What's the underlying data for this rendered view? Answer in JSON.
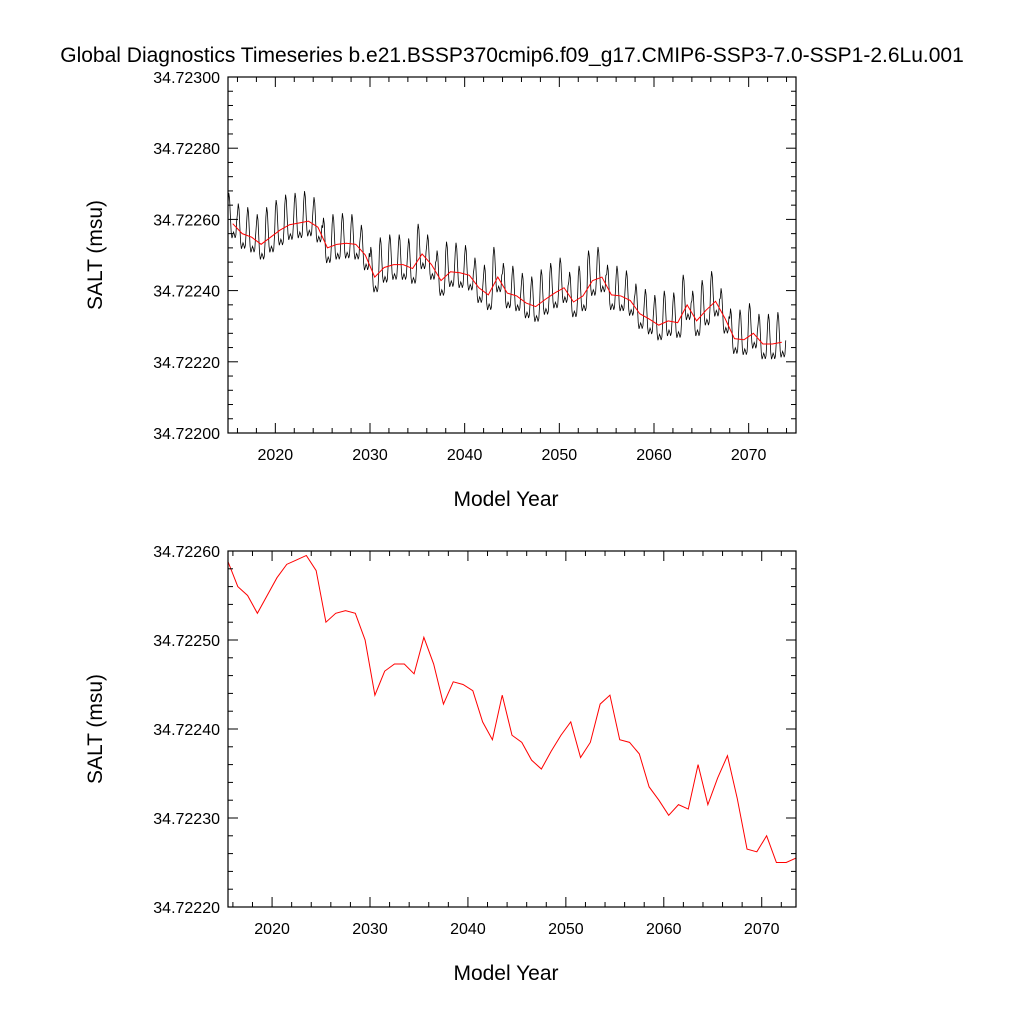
{
  "chart_data": [
    {
      "type": "line",
      "title": "Global Diagnostics Timeseries b.e21.BSSP370cmip6.f09_g17.CMIP6-SSP3-7.0-SSP1-2.6Lu.001",
      "xlabel": "Model Year",
      "ylabel": "SALT (msu)",
      "xlim": [
        2015,
        2075
      ],
      "ylim": [
        34.722,
        34.723
      ],
      "xticks": [
        "2020",
        "2030",
        "2040",
        "2050",
        "2060",
        "2070"
      ],
      "yticks": [
        "34.72200",
        "34.72220",
        "34.72240",
        "34.72260",
        "34.72280",
        "34.72300"
      ],
      "grid": false,
      "series": [
        {
          "color": "#000000",
          "style": "monthly",
          "x_start": 2015.0,
          "x_step": 0.0833333,
          "annual_mean": [
            34.72259,
            34.72256,
            34.72255,
            34.72253,
            34.72255,
            34.72257,
            34.722585,
            34.72259,
            34.722595,
            34.722578,
            34.72252,
            34.72253,
            34.722533,
            34.72253,
            34.7225,
            34.722438,
            34.722465,
            34.722473,
            34.722473,
            34.722462,
            34.722503,
            34.722473,
            34.722428,
            34.722453,
            34.72245,
            34.722443,
            34.722408,
            34.722388,
            34.722438,
            34.722393,
            34.722385,
            34.722365,
            34.722355,
            34.722375,
            34.722393,
            34.722408,
            34.722368,
            34.722385,
            34.722428,
            34.722438,
            34.722388,
            34.722385,
            34.722372,
            34.722335,
            34.72232,
            34.722303,
            34.722315,
            34.72231,
            34.72236,
            34.722315,
            34.722345,
            34.72237,
            34.722322,
            34.722265,
            34.722262,
            34.72228,
            34.72225,
            34.72225,
            34.722255
          ],
          "seasonal_amplitude": 0.00017
        },
        {
          "color": "#ff0000",
          "style": "annual",
          "x": [
            2015.5,
            2016.5,
            2017.5,
            2018.5,
            2019.5,
            2020.5,
            2021.5,
            2022.5,
            2023.5,
            2024.5,
            2025.5,
            2026.5,
            2027.5,
            2028.5,
            2029.5,
            2030.5,
            2031.5,
            2032.5,
            2033.5,
            2034.5,
            2035.5,
            2036.5,
            2037.5,
            2038.5,
            2039.5,
            2040.5,
            2041.5,
            2042.5,
            2043.5,
            2044.5,
            2045.5,
            2046.5,
            2047.5,
            2048.5,
            2049.5,
            2050.5,
            2051.5,
            2052.5,
            2053.5,
            2054.5,
            2055.5,
            2056.5,
            2057.5,
            2058.5,
            2059.5,
            2060.5,
            2061.5,
            2062.5,
            2063.5,
            2064.5,
            2065.5,
            2066.5,
            2067.5,
            2068.5,
            2069.5,
            2070.5,
            2071.5,
            2072.5,
            2073.5
          ],
          "values": [
            34.722588,
            34.72256,
            34.72255,
            34.72253,
            34.72255,
            34.72257,
            34.722585,
            34.72259,
            34.722595,
            34.722578,
            34.72252,
            34.72253,
            34.722533,
            34.72253,
            34.7225,
            34.722438,
            34.722465,
            34.722473,
            34.722473,
            34.722462,
            34.722503,
            34.722473,
            34.722428,
            34.722453,
            34.72245,
            34.722443,
            34.722408,
            34.722388,
            34.722438,
            34.722393,
            34.722385,
            34.722365,
            34.722355,
            34.722375,
            34.722393,
            34.722408,
            34.722368,
            34.722385,
            34.722428,
            34.722438,
            34.722388,
            34.722385,
            34.722372,
            34.722335,
            34.72232,
            34.722303,
            34.722315,
            34.72231,
            34.72236,
            34.722315,
            34.722345,
            34.72237,
            34.722322,
            34.722265,
            34.722262,
            34.72228,
            34.72225,
            34.72225,
            34.722255
          ]
        }
      ]
    },
    {
      "type": "line",
      "title": "",
      "xlabel": "Model Year",
      "ylabel": "SALT (msu)",
      "xlim": [
        2015.5,
        2073.5
      ],
      "ylim": [
        34.7222,
        34.7226
      ],
      "xticks": [
        "2020",
        "2030",
        "2040",
        "2050",
        "2060",
        "2070"
      ],
      "yticks": [
        "34.72220",
        "34.72230",
        "34.72240",
        "34.72250",
        "34.72260"
      ],
      "grid": false,
      "series": [
        {
          "color": "#ff0000",
          "style": "annual",
          "x": [
            2015.5,
            2016.5,
            2017.5,
            2018.5,
            2019.5,
            2020.5,
            2021.5,
            2022.5,
            2023.5,
            2024.5,
            2025.5,
            2026.5,
            2027.5,
            2028.5,
            2029.5,
            2030.5,
            2031.5,
            2032.5,
            2033.5,
            2034.5,
            2035.5,
            2036.5,
            2037.5,
            2038.5,
            2039.5,
            2040.5,
            2041.5,
            2042.5,
            2043.5,
            2044.5,
            2045.5,
            2046.5,
            2047.5,
            2048.5,
            2049.5,
            2050.5,
            2051.5,
            2052.5,
            2053.5,
            2054.5,
            2055.5,
            2056.5,
            2057.5,
            2058.5,
            2059.5,
            2060.5,
            2061.5,
            2062.5,
            2063.5,
            2064.5,
            2065.5,
            2066.5,
            2067.5,
            2068.5,
            2069.5,
            2070.5,
            2071.5,
            2072.5,
            2073.5
          ],
          "values": [
            34.722588,
            34.72256,
            34.72255,
            34.72253,
            34.72255,
            34.72257,
            34.722585,
            34.72259,
            34.722595,
            34.722578,
            34.72252,
            34.72253,
            34.722533,
            34.72253,
            34.7225,
            34.722438,
            34.722465,
            34.722473,
            34.722473,
            34.722462,
            34.722503,
            34.722473,
            34.722428,
            34.722453,
            34.72245,
            34.722443,
            34.722408,
            34.722388,
            34.722438,
            34.722393,
            34.722385,
            34.722365,
            34.722355,
            34.722375,
            34.722393,
            34.722408,
            34.722368,
            34.722385,
            34.722428,
            34.722438,
            34.722388,
            34.722385,
            34.722372,
            34.722335,
            34.72232,
            34.722303,
            34.722315,
            34.72231,
            34.72236,
            34.722315,
            34.722345,
            34.72237,
            34.722322,
            34.722265,
            34.722262,
            34.72228,
            34.72225,
            34.72225,
            34.722255
          ]
        }
      ]
    }
  ]
}
